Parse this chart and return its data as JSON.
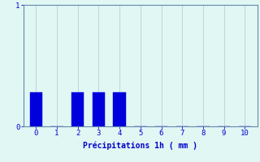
{
  "categories": [
    0,
    1,
    2,
    3,
    4,
    5,
    6,
    7,
    8,
    9,
    10
  ],
  "values": [
    0.28,
    0.0,
    0.28,
    0.28,
    0.28,
    0.0,
    0.0,
    0.0,
    0.0,
    0.0,
    0.0
  ],
  "bar_color": "#0000dd",
  "bar_edgecolor": "#0000dd",
  "background_color": "#e0f7f4",
  "xlabel": "Précipitations 1h ( mm )",
  "ylim": [
    0,
    1.0
  ],
  "xlim": [
    -0.6,
    10.6
  ],
  "yticks": [
    0,
    1
  ],
  "xticks": [
    0,
    1,
    2,
    3,
    4,
    5,
    6,
    7,
    8,
    9,
    10
  ],
  "grid_color": "#b0c8c8",
  "axis_color": "#6688aa",
  "tick_color": "#0000cc",
  "label_color": "#0000cc",
  "xlabel_fontsize": 7,
  "tick_fontsize": 6.5,
  "bar_width": 0.6
}
